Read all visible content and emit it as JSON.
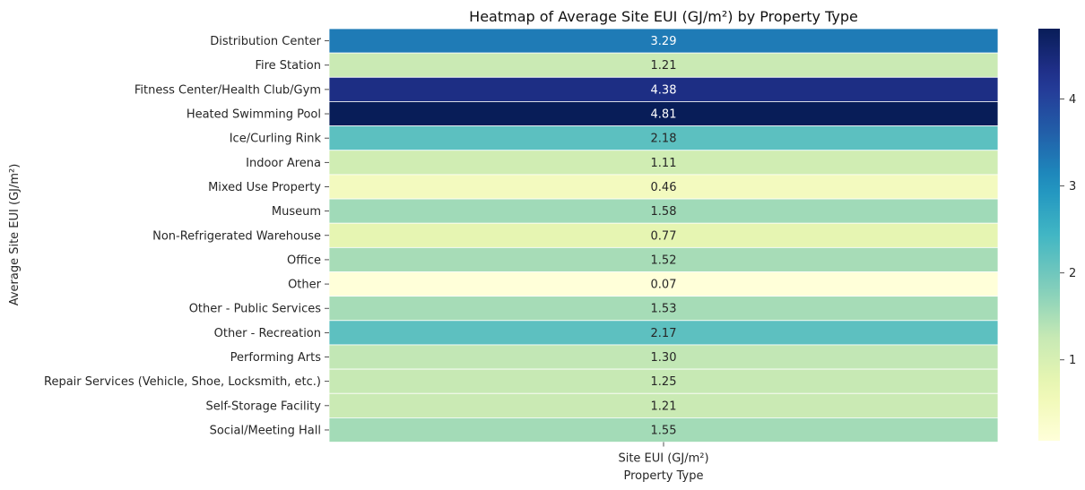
{
  "chart_data": {
    "type": "heatmap",
    "title": "Heatmap of Average Site EUI (GJ/m²) by Property Type",
    "xlabel": "Property Type",
    "ylabel": "Average Site EUI (GJ/m²)",
    "columns": [
      "Site EUI (GJ/m²)"
    ],
    "rows": [
      "Distribution Center",
      "Fire Station",
      "Fitness Center/Health Club/Gym",
      "Heated Swimming Pool",
      "Ice/Curling Rink",
      "Indoor Arena",
      "Mixed Use Property",
      "Museum",
      "Non-Refrigerated Warehouse",
      "Office",
      "Other",
      "Other - Public Services",
      "Other - Recreation",
      "Performing Arts",
      "Repair Services (Vehicle, Shoe, Locksmith, etc.)",
      "Self-Storage Facility",
      "Social/Meeting Hall"
    ],
    "values": [
      3.29,
      1.21,
      4.38,
      4.81,
      2.18,
      1.11,
      0.46,
      1.58,
      0.77,
      1.52,
      0.07,
      1.53,
      2.17,
      1.3,
      1.25,
      1.21,
      1.55
    ],
    "value_labels": [
      "3.29",
      "1.21",
      "4.38",
      "4.81",
      "2.18",
      "1.11",
      "0.46",
      "1.58",
      "0.77",
      "1.52",
      "0.07",
      "1.53",
      "2.17",
      "1.30",
      "1.25",
      "1.21",
      "1.55"
    ],
    "colormap": "YlGnBu",
    "vmin": 0.07,
    "vmax": 4.81,
    "colorbar_ticks": [
      1,
      2,
      3,
      4
    ],
    "colorbar_tick_labels": [
      "1",
      "2",
      "3",
      "4"
    ],
    "grid": false
  }
}
